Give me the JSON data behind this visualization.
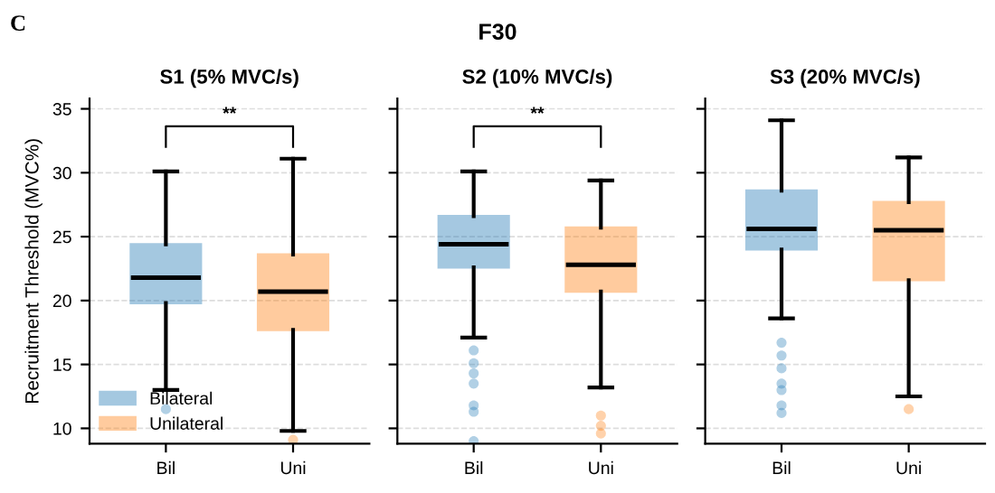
{
  "chart_data": [
    {
      "type": "box",
      "title": "S1 (5% MVC/s)",
      "ylabel": "Recruitment Threshold (MVC%)",
      "categories": [
        "Bil",
        "Uni"
      ],
      "ylim": [
        8.8,
        35.8
      ],
      "yticks": [
        10,
        15,
        20,
        25,
        30,
        35
      ],
      "grid": "y",
      "legend": "bottom left",
      "annotations": [
        "C",
        "F30",
        "**"
      ],
      "series": [
        {
          "name": "Bilateral",
          "color": "#1f77b4",
          "boxes": [
            {
              "low": 13.0,
              "q1": 19.8,
              "median": 21.8,
              "q3": 24.4,
              "high": 30.1,
              "outliers": [
                11.5
              ]
            },
            null
          ]
        },
        {
          "name": "Unilateral",
          "color": "#ff7f0e",
          "boxes": [
            null,
            {
              "low": 9.8,
              "q1": 17.7,
              "median": 20.7,
              "q3": 23.6,
              "high": 31.1,
              "outliers": [
                9.1
              ]
            }
          ]
        }
      ]
    },
    {
      "type": "box",
      "title": "S2 (10% MVC/s)",
      "categories": [
        "Bil",
        "Uni"
      ],
      "ylim": [
        8.8,
        35.8
      ],
      "yticks": [
        10,
        15,
        20,
        25,
        30,
        35
      ],
      "tick_labels": "x",
      "grid": "y",
      "annotations": [
        "**"
      ],
      "series": [
        {
          "color": "#1f77b4",
          "boxes": [
            {
              "low": 17.1,
              "q1": 22.6,
              "median": 24.4,
              "q3": 26.6,
              "high": 30.1,
              "outliers": [
                16.1,
                15.1,
                14.3,
                13.5,
                11.8,
                11.3,
                9.0
              ]
            },
            null
          ]
        },
        {
          "color": "#ff7f0e",
          "boxes": [
            null,
            {
              "low": 13.2,
              "q1": 20.7,
              "median": 22.8,
              "q3": 25.7,
              "high": 29.4,
              "outliers": [
                11.0,
                10.2,
                9.6
              ]
            }
          ]
        }
      ]
    },
    {
      "type": "box",
      "title": "S3 (20% MVC/s)",
      "categories": [
        "Bil",
        "Uni"
      ],
      "ylim": [
        8.8,
        35.8
      ],
      "yticks": [
        10,
        15,
        20,
        25,
        30,
        35
      ],
      "tick_labels": "x",
      "grid": "y",
      "series": [
        {
          "color": "#1f77b4",
          "boxes": [
            {
              "low": 18.6,
              "q1": 24.0,
              "median": 25.6,
              "q3": 28.6,
              "high": 34.1,
              "outliers": [
                16.7,
                15.7,
                14.7,
                13.5,
                13.0,
                11.8,
                11.2
              ]
            },
            null
          ]
        },
        {
          "color": "#ff7f0e",
          "boxes": [
            null,
            {
              "low": 12.5,
              "q1": 21.6,
              "median": 25.5,
              "q3": 27.7,
              "high": 31.2,
              "outliers": [
                11.5
              ]
            }
          ]
        }
      ]
    }
  ]
}
